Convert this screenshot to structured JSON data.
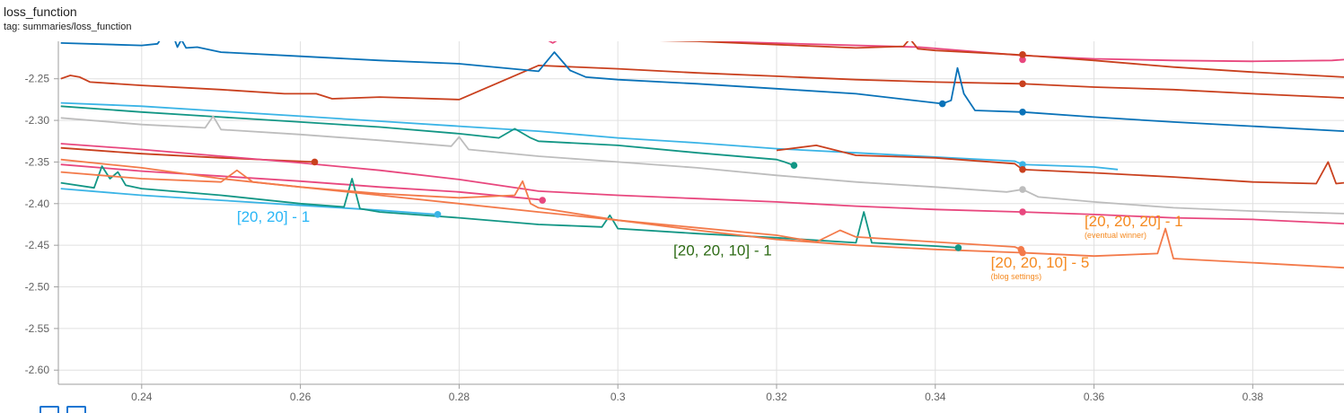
{
  "card": {
    "title": "loss_function",
    "tag": "tag: summaries/loss_function"
  },
  "chart_data": {
    "type": "line",
    "title": "loss_function",
    "xlabel": "",
    "ylabel": "",
    "xlim": [
      0.2295,
      0.3915
    ],
    "ylim": [
      -2.617,
      -2.205
    ],
    "x_ticks": [
      "0.24",
      "0.26",
      "0.28",
      "0.3",
      "0.32",
      "0.34",
      "0.36",
      "0.38"
    ],
    "x_tick_values": [
      0.24,
      0.26,
      0.28,
      0.3,
      0.32,
      0.34,
      0.36,
      0.38
    ],
    "y_ticks": [
      "-2.25",
      "-2.30",
      "-2.35",
      "-2.40",
      "-2.45",
      "-2.50",
      "-2.55",
      "-2.60"
    ],
    "y_tick_values": [
      -2.25,
      -2.3,
      -2.35,
      -2.4,
      -2.45,
      -2.5,
      -2.55,
      -2.6
    ],
    "grid": true,
    "series": [
      {
        "color": "#e8477e",
        "points": [
          [
            0.2518,
            -2.2
          ],
          [
            0.2905,
            -2.2
          ],
          [
            0.2918,
            -2.207
          ],
          [
            0.293,
            -2.2
          ],
          [
            0.338,
            -2.212
          ],
          [
            0.351,
            -2.222
          ],
          [
            0.36,
            -2.226
          ],
          [
            0.37,
            -2.228
          ],
          [
            0.38,
            -2.229
          ],
          [
            0.39,
            -2.228
          ],
          [
            0.3915,
            -2.227
          ]
        ],
        "marker": [
          0.351,
          -2.227
        ]
      },
      {
        "color": "#c9401e",
        "points": [
          [
            0.264,
            -2.2
          ],
          [
            0.3,
            -2.203
          ],
          [
            0.31,
            -2.205
          ],
          [
            0.32,
            -2.209
          ],
          [
            0.33,
            -2.213
          ],
          [
            0.336,
            -2.211
          ],
          [
            0.3368,
            -2.202
          ],
          [
            0.3378,
            -2.214
          ],
          [
            0.34,
            -2.216
          ],
          [
            0.35,
            -2.221
          ],
          [
            0.36,
            -2.228
          ],
          [
            0.37,
            -2.236
          ],
          [
            0.38,
            -2.242
          ],
          [
            0.3915,
            -2.248
          ]
        ],
        "marker": [
          0.351,
          -2.221
        ]
      },
      {
        "color": "#c9401e",
        "points": [
          [
            0.2298,
            -2.25
          ],
          [
            0.231,
            -2.246
          ],
          [
            0.2322,
            -2.248
          ],
          [
            0.2335,
            -2.254
          ],
          [
            0.24,
            -2.258
          ],
          [
            0.25,
            -2.263
          ],
          [
            0.258,
            -2.268
          ],
          [
            0.262,
            -2.268
          ],
          [
            0.264,
            -2.274
          ],
          [
            0.27,
            -2.272
          ],
          [
            0.28,
            -2.275
          ],
          [
            0.29,
            -2.234
          ],
          [
            0.3,
            -2.238
          ],
          [
            0.31,
            -2.243
          ],
          [
            0.32,
            -2.247
          ],
          [
            0.33,
            -2.251
          ],
          [
            0.34,
            -2.254
          ],
          [
            0.351,
            -2.256
          ],
          [
            0.36,
            -2.26
          ],
          [
            0.37,
            -2.263
          ],
          [
            0.38,
            -2.268
          ],
          [
            0.3915,
            -2.273
          ]
        ],
        "marker": [
          0.351,
          -2.256
        ]
      },
      {
        "color": "#0972b8",
        "points": [
          [
            0.2298,
            -2.207
          ],
          [
            0.24,
            -2.21
          ],
          [
            0.242,
            -2.208
          ],
          [
            0.2435,
            -2.186
          ],
          [
            0.2445,
            -2.212
          ],
          [
            0.245,
            -2.203
          ],
          [
            0.2456,
            -2.213
          ],
          [
            0.247,
            -2.212
          ],
          [
            0.25,
            -2.218
          ],
          [
            0.26,
            -2.223
          ],
          [
            0.27,
            -2.228
          ],
          [
            0.28,
            -2.232
          ],
          [
            0.29,
            -2.241
          ],
          [
            0.292,
            -2.218
          ],
          [
            0.294,
            -2.24
          ],
          [
            0.296,
            -2.248
          ],
          [
            0.3,
            -2.251
          ],
          [
            0.31,
            -2.256
          ],
          [
            0.32,
            -2.262
          ],
          [
            0.33,
            -2.268
          ],
          [
            0.3409,
            -2.28
          ],
          [
            0.342,
            -2.276
          ],
          [
            0.3428,
            -2.237
          ],
          [
            0.3436,
            -2.268
          ],
          [
            0.345,
            -2.288
          ],
          [
            0.351,
            -2.29
          ],
          [
            0.36,
            -2.296
          ],
          [
            0.37,
            -2.302
          ],
          [
            0.38,
            -2.307
          ],
          [
            0.3915,
            -2.313
          ]
        ],
        "marker": [
          0.351,
          -2.29
        ],
        "marker2": [
          0.3409,
          -2.28
        ]
      },
      {
        "color": "#3ab4e6",
        "points": [
          [
            0.2298,
            -2.279
          ],
          [
            0.24,
            -2.283
          ],
          [
            0.25,
            -2.289
          ],
          [
            0.26,
            -2.295
          ],
          [
            0.27,
            -2.301
          ],
          [
            0.28,
            -2.307
          ],
          [
            0.29,
            -2.313
          ],
          [
            0.3,
            -2.321
          ],
          [
            0.31,
            -2.327
          ],
          [
            0.32,
            -2.334
          ],
          [
            0.33,
            -2.339
          ],
          [
            0.34,
            -2.344
          ],
          [
            0.35,
            -2.349
          ],
          [
            0.351,
            -2.353
          ],
          [
            0.36,
            -2.356
          ],
          [
            0.363,
            -2.359
          ]
        ],
        "marker": [
          0.351,
          -2.353
        ]
      },
      {
        "color": "#129685",
        "points": [
          [
            0.2298,
            -2.283
          ],
          [
            0.24,
            -2.29
          ],
          [
            0.25,
            -2.296
          ],
          [
            0.26,
            -2.302
          ],
          [
            0.27,
            -2.308
          ],
          [
            0.28,
            -2.316
          ],
          [
            0.285,
            -2.321
          ],
          [
            0.287,
            -2.31
          ],
          [
            0.289,
            -2.321
          ],
          [
            0.29,
            -2.325
          ],
          [
            0.3,
            -2.33
          ],
          [
            0.31,
            -2.339
          ],
          [
            0.32,
            -2.347
          ],
          [
            0.321,
            -2.35
          ],
          [
            0.3222,
            -2.354
          ]
        ],
        "marker": [
          0.3222,
          -2.354
        ]
      },
      {
        "color": "#bdbdbd",
        "points": [
          [
            0.2298,
            -2.297
          ],
          [
            0.24,
            -2.305
          ],
          [
            0.248,
            -2.309
          ],
          [
            0.249,
            -2.295
          ],
          [
            0.25,
            -2.311
          ],
          [
            0.26,
            -2.317
          ],
          [
            0.27,
            -2.324
          ],
          [
            0.279,
            -2.331
          ],
          [
            0.28,
            -2.32
          ],
          [
            0.2812,
            -2.335
          ],
          [
            0.29,
            -2.343
          ],
          [
            0.3,
            -2.35
          ],
          [
            0.31,
            -2.357
          ],
          [
            0.32,
            -2.366
          ],
          [
            0.33,
            -2.374
          ],
          [
            0.34,
            -2.38
          ],
          [
            0.349,
            -2.386
          ],
          [
            0.351,
            -2.383
          ],
          [
            0.353,
            -2.392
          ],
          [
            0.36,
            -2.398
          ],
          [
            0.37,
            -2.405
          ],
          [
            0.38,
            -2.409
          ],
          [
            0.3915,
            -2.412
          ]
        ],
        "marker": [
          0.351,
          -2.383
        ]
      },
      {
        "color": "#c9401e",
        "points": [
          [
            0.2298,
            -2.333
          ],
          [
            0.24,
            -2.34
          ],
          [
            0.25,
            -2.345
          ],
          [
            0.2618,
            -2.35
          ]
        ],
        "marker": [
          0.2618,
          -2.35
        ]
      },
      {
        "color": "#c9401e",
        "points": [
          [
            0.32,
            -2.336
          ],
          [
            0.325,
            -2.33
          ],
          [
            0.33,
            -2.342
          ],
          [
            0.34,
            -2.345
          ],
          [
            0.35,
            -2.352
          ],
          [
            0.351,
            -2.359
          ],
          [
            0.36,
            -2.363
          ],
          [
            0.37,
            -2.368
          ],
          [
            0.38,
            -2.374
          ],
          [
            0.388,
            -2.376
          ],
          [
            0.3895,
            -2.35
          ],
          [
            0.3905,
            -2.376
          ],
          [
            0.3915,
            -2.375
          ]
        ],
        "marker": [
          0.351,
          -2.359
        ]
      },
      {
        "color": "#e8477e",
        "points": [
          [
            0.2298,
            -2.328
          ],
          [
            0.24,
            -2.335
          ],
          [
            0.25,
            -2.343
          ],
          [
            0.26,
            -2.351
          ],
          [
            0.27,
            -2.36
          ],
          [
            0.28,
            -2.371
          ],
          [
            0.29,
            -2.385
          ],
          [
            0.3,
            -2.39
          ],
          [
            0.31,
            -2.394
          ],
          [
            0.32,
            -2.398
          ],
          [
            0.33,
            -2.403
          ],
          [
            0.34,
            -2.407
          ],
          [
            0.351,
            -2.41
          ],
          [
            0.36,
            -2.413
          ],
          [
            0.37,
            -2.417
          ],
          [
            0.38,
            -2.419
          ],
          [
            0.3915,
            -2.424
          ]
        ],
        "marker": [
          0.351,
          -2.41
        ]
      },
      {
        "color": "#e8477e",
        "points": [
          [
            0.2298,
            -2.353
          ],
          [
            0.24,
            -2.361
          ],
          [
            0.25,
            -2.367
          ],
          [
            0.26,
            -2.373
          ],
          [
            0.27,
            -2.38
          ],
          [
            0.28,
            -2.386
          ],
          [
            0.29,
            -2.395
          ],
          [
            0.2905,
            -2.396
          ]
        ],
        "marker": [
          0.2905,
          -2.396
        ]
      },
      {
        "color": "#3ab4e6",
        "points": [
          [
            0.2298,
            -2.382
          ],
          [
            0.24,
            -2.39
          ],
          [
            0.25,
            -2.396
          ],
          [
            0.26,
            -2.402
          ],
          [
            0.27,
            -2.408
          ],
          [
            0.2773,
            -2.413
          ]
        ],
        "marker": [
          0.2773,
          -2.413
        ]
      },
      {
        "color": "#129685",
        "points": [
          [
            0.2298,
            -2.375
          ],
          [
            0.234,
            -2.381
          ],
          [
            0.235,
            -2.355
          ],
          [
            0.236,
            -2.37
          ],
          [
            0.237,
            -2.362
          ],
          [
            0.238,
            -2.378
          ],
          [
            0.24,
            -2.382
          ],
          [
            0.25,
            -2.39
          ],
          [
            0.26,
            -2.4
          ],
          [
            0.2655,
            -2.404
          ],
          [
            0.2665,
            -2.37
          ],
          [
            0.2675,
            -2.406
          ],
          [
            0.27,
            -2.41
          ],
          [
            0.28,
            -2.417
          ],
          [
            0.29,
            -2.425
          ],
          [
            0.298,
            -2.428
          ],
          [
            0.299,
            -2.414
          ],
          [
            0.3,
            -2.43
          ],
          [
            0.31,
            -2.436
          ],
          [
            0.32,
            -2.441
          ],
          [
            0.33,
            -2.447
          ],
          [
            0.331,
            -2.41
          ],
          [
            0.332,
            -2.447
          ],
          [
            0.34,
            -2.451
          ],
          [
            0.3429,
            -2.453
          ]
        ],
        "marker": [
          0.3429,
          -2.453
        ]
      },
      {
        "color": "#f37a4a",
        "points": [
          [
            0.2298,
            -2.362
          ],
          [
            0.24,
            -2.37
          ],
          [
            0.25,
            -2.374
          ],
          [
            0.252,
            -2.36
          ],
          [
            0.254,
            -2.374
          ],
          [
            0.26,
            -2.38
          ],
          [
            0.27,
            -2.388
          ],
          [
            0.28,
            -2.393
          ],
          [
            0.287,
            -2.39
          ],
          [
            0.288,
            -2.373
          ],
          [
            0.289,
            -2.4
          ],
          [
            0.29,
            -2.405
          ],
          [
            0.3,
            -2.42
          ],
          [
            0.31,
            -2.429
          ],
          [
            0.32,
            -2.438
          ],
          [
            0.325,
            -2.446
          ],
          [
            0.328,
            -2.432
          ],
          [
            0.33,
            -2.44
          ],
          [
            0.34,
            -2.446
          ],
          [
            0.35,
            -2.452
          ],
          [
            0.3508,
            -2.455
          ]
        ],
        "marker": [
          0.3508,
          -2.455
        ]
      },
      {
        "color": "#f37a4a",
        "points": [
          [
            0.2298,
            -2.347
          ],
          [
            0.24,
            -2.357
          ],
          [
            0.25,
            -2.37
          ],
          [
            0.26,
            -2.38
          ],
          [
            0.27,
            -2.39
          ],
          [
            0.28,
            -2.4
          ],
          [
            0.29,
            -2.41
          ],
          [
            0.3,
            -2.42
          ],
          [
            0.31,
            -2.432
          ],
          [
            0.32,
            -2.443
          ],
          [
            0.33,
            -2.45
          ],
          [
            0.34,
            -2.455
          ],
          [
            0.351,
            -2.459
          ],
          [
            0.36,
            -2.463
          ],
          [
            0.368,
            -2.46
          ],
          [
            0.369,
            -2.43
          ],
          [
            0.37,
            -2.466
          ],
          [
            0.38,
            -2.471
          ],
          [
            0.3915,
            -2.477
          ]
        ],
        "marker": [
          0.351,
          -2.459
        ]
      }
    ],
    "annotations": [
      {
        "text": "[20, 20] - 1",
        "color": "#29b6f6",
        "x": 0.252,
        "y": -2.422
      },
      {
        "text": "[20, 20, 10] - 1",
        "color": "#2e6b16",
        "x": 0.307,
        "y": -2.462
      },
      {
        "text": "[20, 20, 10] - 5",
        "color": "#f5891f",
        "sub": "(blog settings)",
        "x": 0.347,
        "y": -2.477
      },
      {
        "text": "[20, 20, 20] - 1",
        "color": "#f5891f",
        "sub": "(eventual winner)",
        "x": 0.3588,
        "y": -2.427
      }
    ]
  }
}
